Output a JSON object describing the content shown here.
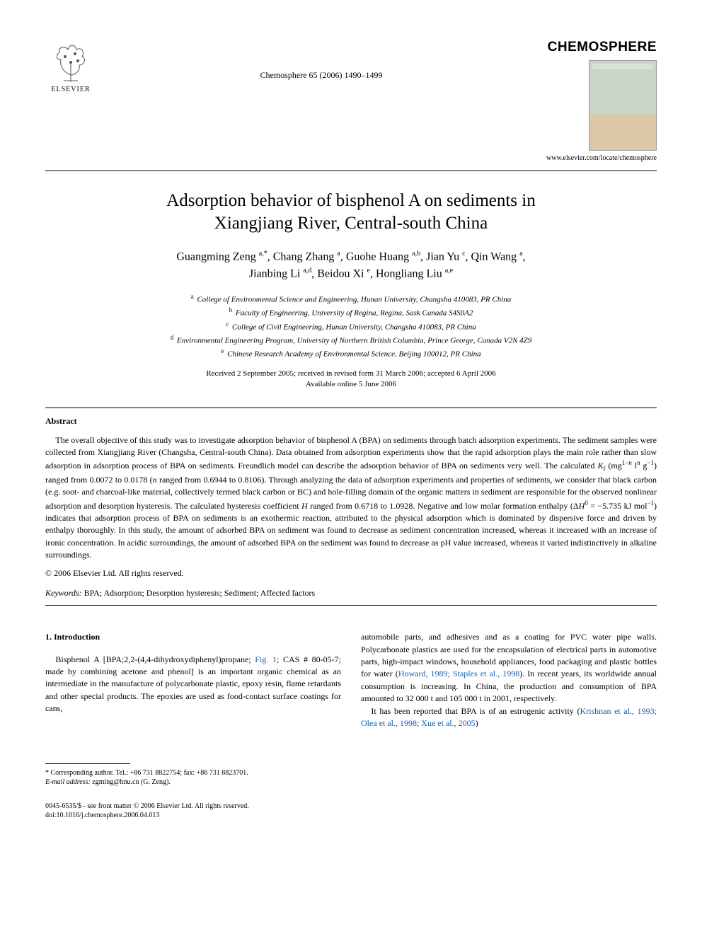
{
  "header": {
    "publisher_name": "ELSEVIER",
    "journal_ref": "Chemosphere 65 (2006) 1490–1499",
    "journal_title": "CHEMOSPHERE",
    "journal_url": "www.elsevier.com/locate/chemosphere"
  },
  "title_line1": "Adsorption behavior of bisphenol A on sediments in",
  "title_line2": "Xiangjiang River, Central-south China",
  "authors_html": "Guangming Zeng <sup>a,*</sup>, Chang Zhang <sup>a</sup>, Guohe Huang <sup>a,b</sup>, Jian Yu <sup>c</sup>, Qin Wang <sup>a</sup>,<br>Jianbing Li <sup>a,d</sup>, Beidou Xi <sup>e</sup>, Hongliang Liu <sup>a,e</sup>",
  "affiliations": [
    {
      "sup": "a",
      "text": "College of Environmental Science and Engineering, Hunan University, Changsha 410083, PR China"
    },
    {
      "sup": "b",
      "text": "Faculty of Engineering, University of Regina, Regina, Sask Canada S4S0A2"
    },
    {
      "sup": "c",
      "text": "College of Civil Engineering, Hunan University, Changsha 410083, PR China"
    },
    {
      "sup": "d",
      "text": "Environmental Engineering Program, University of Northern British Columbia, Prince George, Canada V2N 4Z9"
    },
    {
      "sup": "e",
      "text": "Chinese Research Academy of Environmental Science, Beijing 100012, PR China"
    }
  ],
  "dates_line1": "Received 2 September 2005; received in revised form 31 March 2006; accepted 6 April 2006",
  "dates_line2": "Available online 5 June 2006",
  "abstract_heading": "Abstract",
  "abstract_body_html": "The overall objective of this study was to investigate adsorption behavior of bisphenol A (BPA) on sediments through batch adsorption experiments. The sediment samples were collected from Xiangjiang River (Changsha, Central-south China). Data obtained from adsorption experiments show that the rapid adsorption plays the main role rather than slow adsorption in adsorption process of BPA on sediments. Freundlich model can describe the adsorption behavior of BPA on sediments very well. The calculated <i>K</i><sub>f</sub> (mg<sup>1−<i>n</i></sup> l<sup><i>n</i></sup> g<sup>−1</sup>) ranged from 0.0072 to 0.0178 (<i>n</i> ranged from 0.6944 to 0.8106). Through analyzing the data of adsorption experiments and properties of sediments, we consider that black carbon (e.g. soot- and charcoal-like material, collectively termed black carbon or BC) and hole-filling domain of the organic matters in sediment are responsible for the observed nonlinear adsorption and desorption hysteresis. The calculated hysteresis coefficient <i>H</i> ranged from 0.6718 to 1.0928. Negative and low molar formation enthalpy (Δ<i>H</i><sup>0</sup> = −5.735 kJ mol<sup>−1</sup>) indicates that adsorption process of BPA on sediments is an exothermic reaction, attributed to the physical adsorption which is dominated by dispersive force and driven by enthalpy thoroughly. In this study, the amount of adsorbed BPA on sediment was found to decrease as sediment concentration increased, whereas it increased with an increase of ironic concentration. In acidic surroundings, the amount of adsorbed BPA on the sediment was found to decrease as pH value increased, whereas it varied indistinctively in alkaline surroundings.",
  "copyright_line": "© 2006 Elsevier Ltd. All rights reserved.",
  "keywords_label": "Keywords:",
  "keywords_text": " BPA; Adsorption; Desorption hysteresis; Sediment; Affected factors",
  "intro_heading": "1. Introduction",
  "intro_para1_html": "Bisphenol A [BPA;2,2-(4,4-dihydroxydiphenyl)propane; <span class=\"ref-link\">Fig. 1</span>; CAS # 80-05-7; made by combining acetone and phenol] is an important organic chemical as an intermediate in the manufacture of polycarbonate plastic, epoxy resin, flame retardants and other special products. The epoxies are used as food-contact surface coatings for cans,",
  "intro_col2_html": "automobile parts, and adhesives and as a coating for PVC water pipe walls. Polycarbonate plastics are used for the encapsulation of electrical parts in automotive parts, high-impact windows, household appliances, food packaging and plastic bottles for water (<span class=\"ref-link\">Howard, 1989; Staples et al., 1998</span>). In recent years, its worldwide annual consumption is increasing. In China, the production and consumption of BPA amounted to 32 000 t and 105 000 t in 2001, respectively.",
  "intro_col2_p2_html": "It has been reported that BPA is of an estrogenic activity (<span class=\"ref-link\">Krishnan et al., 1993; Olea et al., 1998; Xue et al., 2005</span>)",
  "footnote_star": "*",
  "footnote_corr": "Corresponding author. Tel.: +86 731 8822754; fax: +86 731 8823701.",
  "footnote_email_label": "E-mail address:",
  "footnote_email": " zgming@hnu.cn",
  "footnote_email_tail": " (G. Zeng).",
  "footer_issn": "0045-6535/$ - see front matter © 2006 Elsevier Ltd. All rights reserved.",
  "footer_doi": "doi:10.1016/j.chemosphere.2006.04.013",
  "colors": {
    "text": "#000000",
    "link": "#1060b0",
    "cover_top": "#c7d6c5",
    "cover_bottom": "#dbc9a5"
  }
}
